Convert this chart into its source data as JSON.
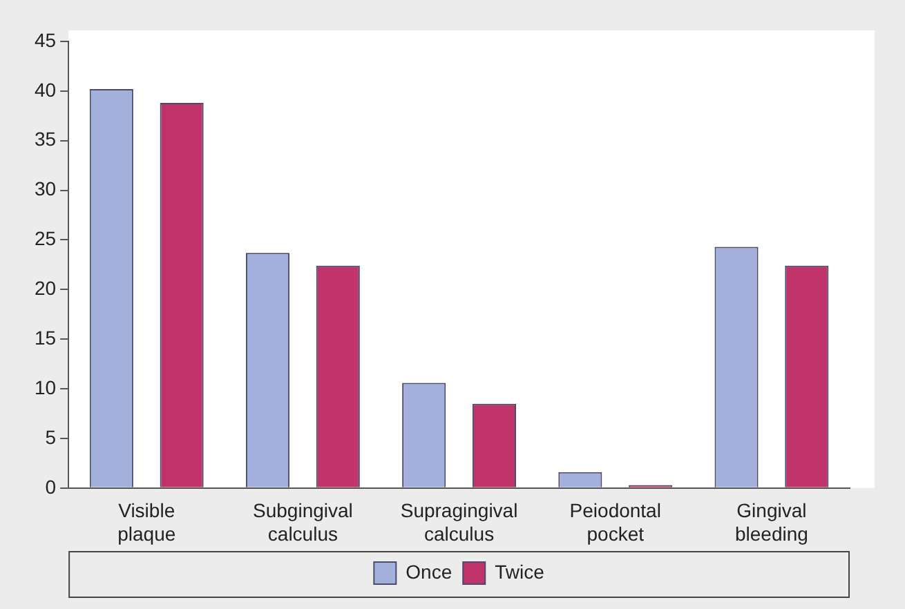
{
  "chart_data": {
    "type": "bar",
    "categories": [
      "Visible plaque",
      "Subgingival calculus",
      "Supragingival calculus",
      "Peiodontal pocket",
      "Gingival bleeding"
    ],
    "series": [
      {
        "name": "Once",
        "color": "#a3b0dc",
        "values": [
          40.2,
          23.7,
          10.6,
          1.6,
          24.3
        ]
      },
      {
        "name": "Twice",
        "color": "#c0336b",
        "values": [
          38.8,
          22.4,
          8.5,
          0.3,
          22.4
        ]
      }
    ],
    "ylim": [
      0,
      45
    ],
    "yticks": [
      0,
      5,
      10,
      15,
      20,
      25,
      30,
      35,
      40,
      45
    ],
    "grid": false,
    "legend": "bottom"
  }
}
